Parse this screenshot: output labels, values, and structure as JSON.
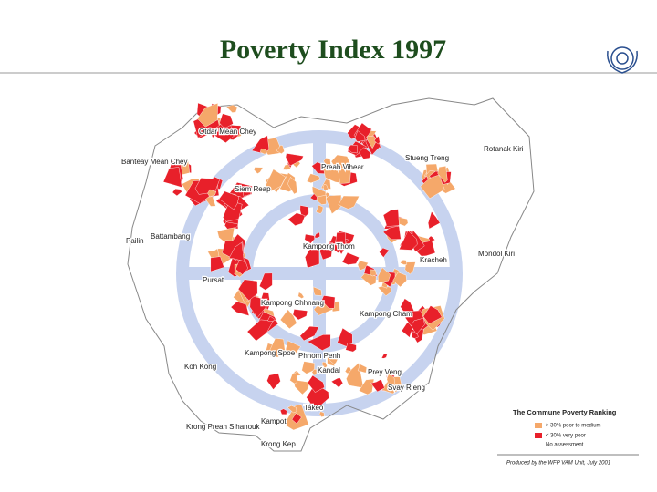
{
  "header": {
    "title": "Poverty Index 1997"
  },
  "map": {
    "labels": [
      {
        "text": "Otdar Mean Chey"
      },
      {
        "text": "Banteay Mean Chey"
      },
      {
        "text": "Preah Vihear"
      },
      {
        "text": "Stueng Treng"
      },
      {
        "text": "Rotanak Kiri"
      },
      {
        "text": "Siem Reap"
      },
      {
        "text": "Pailin"
      },
      {
        "text": "Battambang"
      },
      {
        "text": "Kampong Thom"
      },
      {
        "text": "Mondol Kiri"
      },
      {
        "text": "Kracheh"
      },
      {
        "text": "Pursat"
      },
      {
        "text": "Kampong Chhnang"
      },
      {
        "text": "Kampong Cham"
      },
      {
        "text": "Kampong Spoe"
      },
      {
        "text": "Phnom Penh"
      },
      {
        "text": "Koh Kong"
      },
      {
        "text": "Kandal"
      },
      {
        "text": "Prey Veng"
      },
      {
        "text": "Svay Rieng"
      },
      {
        "text": "Takeo"
      },
      {
        "text": "Kampot"
      },
      {
        "text": "Krong Preah Sihanouk"
      },
      {
        "text": "Krong Kep"
      }
    ]
  },
  "legend": {
    "title": "The Commune Poverty Ranking",
    "items": [
      {
        "label": "> 30% poor to medium",
        "color": "#f5a86a"
      },
      {
        "label": "< 30% very poor",
        "color": "#e8202a"
      },
      {
        "label": "No assessment"
      }
    ]
  },
  "credit": "Produced by the WFP VAM Unit, July 2001"
}
